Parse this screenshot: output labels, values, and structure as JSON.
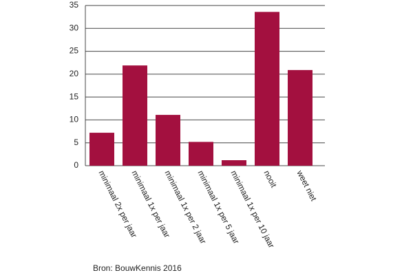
{
  "chart_data": {
    "type": "bar",
    "categories": [
      "minimaal 2x per jaar",
      "minimaal 1x per jaar",
      "minimaal 1x per 2 jaar",
      "minimaal 1x per 5 jaar",
      "minimaal 1x per 10 jaar",
      "nooit",
      "weet niet"
    ],
    "values": [
      7.2,
      21.9,
      11.1,
      5.2,
      1.2,
      33.6,
      20.9
    ],
    "color": "#a3103f",
    "ylim": [
      0,
      35
    ],
    "yticks": [
      0,
      5,
      10,
      15,
      20,
      25,
      30,
      35
    ],
    "grid": true,
    "source": "Bron: BouwKennis 2016"
  }
}
